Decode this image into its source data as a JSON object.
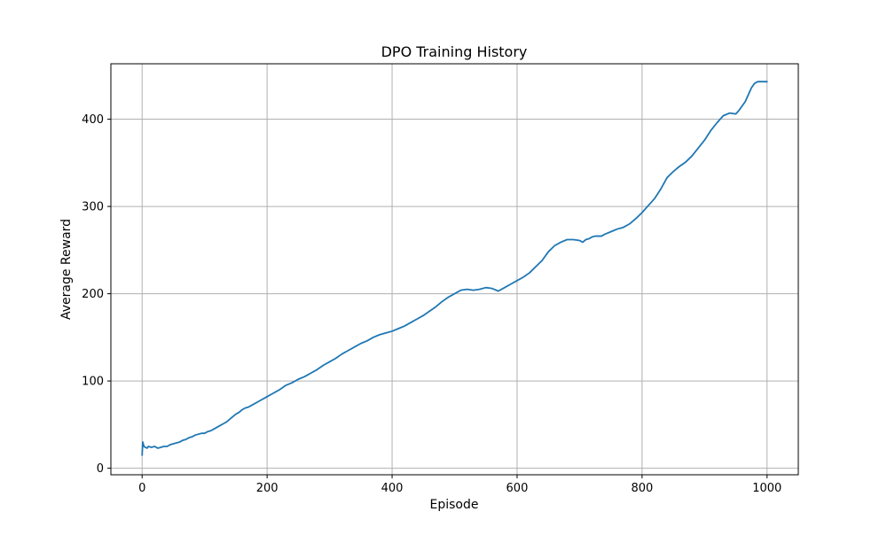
{
  "chart_data": {
    "type": "line",
    "title": "DPO Training History",
    "xlabel": "Episode",
    "ylabel": "Average Reward",
    "xlim": [
      -50,
      1050
    ],
    "ylim": [
      -7.5,
      463.5
    ],
    "xticks": [
      0,
      200,
      400,
      600,
      800,
      1000
    ],
    "yticks": [
      0,
      100,
      200,
      300,
      400
    ],
    "xtick_labels": [
      "0",
      "200",
      "400",
      "600",
      "800",
      "1000"
    ],
    "ytick_labels": [
      "0",
      "100",
      "200",
      "300",
      "400"
    ],
    "grid": true,
    "series": [
      {
        "color": "#1f77b4",
        "x": [
          0,
          1,
          3,
          5,
          8,
          10,
          15,
          20,
          25,
          30,
          35,
          40,
          45,
          50,
          55,
          60,
          65,
          70,
          75,
          80,
          85,
          90,
          95,
          100,
          105,
          110,
          115,
          120,
          125,
          130,
          135,
          140,
          145,
          150,
          155,
          160,
          165,
          170,
          175,
          180,
          185,
          190,
          195,
          200,
          210,
          220,
          230,
          240,
          250,
          260,
          270,
          280,
          290,
          300,
          310,
          320,
          330,
          340,
          350,
          360,
          370,
          380,
          390,
          400,
          410,
          420,
          430,
          440,
          450,
          460,
          470,
          480,
          490,
          500,
          510,
          520,
          530,
          540,
          550,
          560,
          570,
          580,
          590,
          600,
          610,
          620,
          630,
          640,
          650,
          660,
          670,
          680,
          690,
          700,
          705,
          710,
          715,
          720,
          725,
          730,
          735,
          740,
          750,
          760,
          770,
          780,
          790,
          800,
          810,
          820,
          830,
          840,
          850,
          860,
          870,
          880,
          890,
          900,
          910,
          920,
          930,
          940,
          950,
          955,
          960,
          965,
          970,
          975,
          980,
          985,
          990,
          995,
          1000
        ],
        "y": [
          15,
          30,
          25,
          24,
          23,
          25,
          24,
          25,
          23,
          24,
          25,
          25,
          27,
          28,
          29,
          30,
          32,
          33,
          35,
          36,
          38,
          39,
          40,
          40,
          42,
          43,
          45,
          47,
          49,
          51,
          53,
          56,
          59,
          62,
          64,
          67,
          69,
          70,
          72,
          74,
          76,
          78,
          80,
          82,
          86,
          90,
          95,
          98,
          102,
          105,
          109,
          113,
          118,
          122,
          126,
          131,
          135,
          139,
          143,
          146,
          150,
          153,
          155,
          157,
          160,
          163,
          167,
          171,
          175,
          180,
          185,
          191,
          196,
          200,
          204,
          205,
          204,
          205,
          207,
          206,
          203,
          207,
          211,
          215,
          219,
          224,
          231,
          238,
          248,
          255,
          259,
          262,
          262,
          261,
          259,
          262,
          263,
          265,
          266,
          266,
          266,
          268,
          271,
          274,
          276,
          280,
          286,
          293,
          301,
          309,
          320,
          333,
          340,
          346,
          351,
          358,
          367,
          376,
          387,
          396,
          404,
          407,
          406,
          410,
          415,
          420,
          428,
          436,
          441,
          443,
          443,
          443,
          443
        ]
      }
    ]
  }
}
